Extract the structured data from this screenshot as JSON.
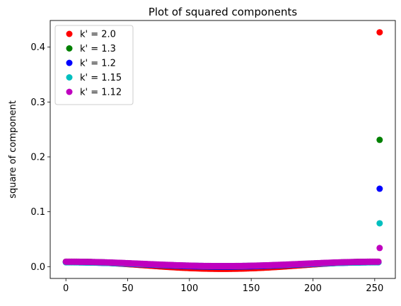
{
  "chart_data": {
    "type": "scatter",
    "title": "Plot of squared components",
    "xlabel": "",
    "ylabel": "square of component",
    "xlim": [
      -12.7,
      266.7
    ],
    "ylim": [
      -0.0215,
      0.4485
    ],
    "xticks": [
      0,
      50,
      100,
      150,
      200,
      250
    ],
    "xtick_labels": [
      "0",
      "50",
      "100",
      "150",
      "200",
      "250"
    ],
    "yticks": [
      0.0,
      0.1,
      0.2,
      0.3,
      0.4
    ],
    "ytick_labels": [
      "0.0",
      "0.1",
      "0.2",
      "0.3",
      "0.4"
    ],
    "grid": false,
    "legend_position": "top-left",
    "n_points": 255,
    "series": [
      {
        "name": "k' = 2.0",
        "color": "#ff0000",
        "edge": 0.009,
        "center": -0.004,
        "last": 0.427
      },
      {
        "name": "k' = 1.3",
        "color": "#008000",
        "edge": 0.009,
        "center": 0.0,
        "last": 0.231
      },
      {
        "name": "k' = 1.2",
        "color": "#0000ff",
        "edge": 0.008,
        "center": 0.0,
        "last": 0.142
      },
      {
        "name": "k' = 1.15",
        "color": "#00bfbf",
        "edge": 0.008,
        "center": 0.001,
        "last": 0.079
      },
      {
        "name": "k' = 1.12",
        "color": "#bf00bf",
        "edge": 0.009,
        "center": 0.001,
        "last": 0.034
      }
    ]
  }
}
